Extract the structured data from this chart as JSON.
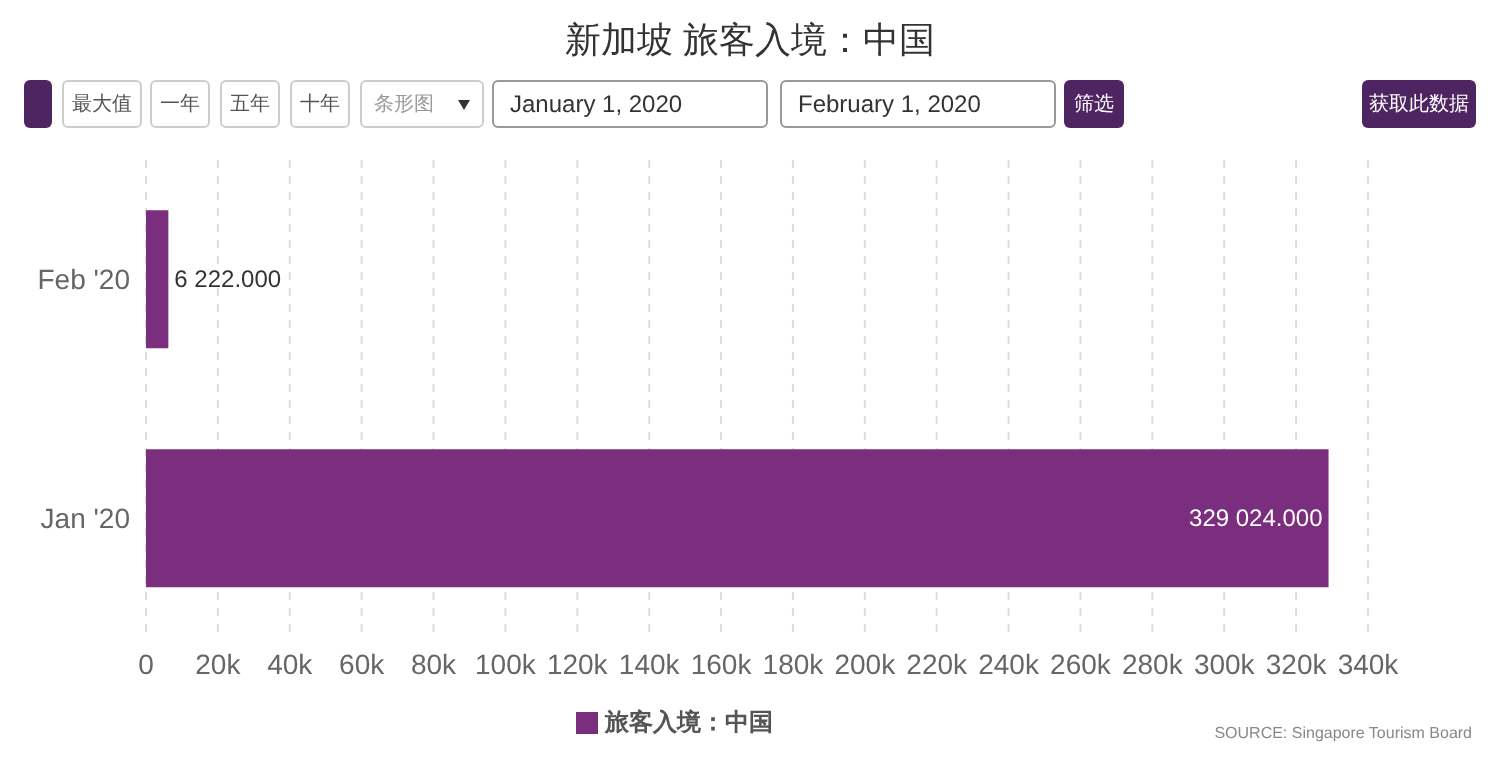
{
  "chart_data": {
    "type": "bar",
    "orientation": "horizontal",
    "title": "新加坡 旅客入境：中国",
    "categories": [
      "Feb '20",
      "Jan '20"
    ],
    "series": [
      {
        "name": "旅客入境：中国",
        "color": "#7b2d7e",
        "values": [
          6222,
          329024
        ],
        "value_labels": [
          "6 222.000",
          "329 024.000"
        ]
      }
    ],
    "xlim": [
      0,
      340000
    ],
    "xticks": [
      0,
      {
        "value": 20000,
        "label": "20k"
      },
      {
        "value": 40000,
        "label": "40k"
      },
      {
        "value": 60000,
        "label": "60k"
      },
      {
        "value": 80000,
        "label": "80k"
      },
      {
        "value": 100000,
        "label": "100k"
      },
      {
        "value": 120000,
        "label": "120k"
      },
      {
        "value": 140000,
        "label": "140k"
      },
      {
        "value": 160000,
        "label": "160k"
      },
      {
        "value": 180000,
        "label": "180k"
      },
      {
        "value": 200000,
        "label": "200k"
      },
      {
        "value": 220000,
        "label": "220k"
      },
      {
        "value": 240000,
        "label": "240k"
      },
      {
        "value": 260000,
        "label": "260k"
      },
      {
        "value": 280000,
        "label": "280k"
      },
      {
        "value": 300000,
        "label": "300k"
      },
      {
        "value": 320000,
        "label": "320k"
      },
      {
        "value": 340000,
        "label": "340k"
      }
    ],
    "grid": "x",
    "legend": "bottom",
    "annotations": [
      "最大值",
      "一年",
      "五年",
      "十年",
      "条形图",
      "January 1, 2020",
      "February 1, 2020",
      "筛选",
      "获取此数据",
      "SOURCE: Singapore Tourism Board"
    ]
  }
}
